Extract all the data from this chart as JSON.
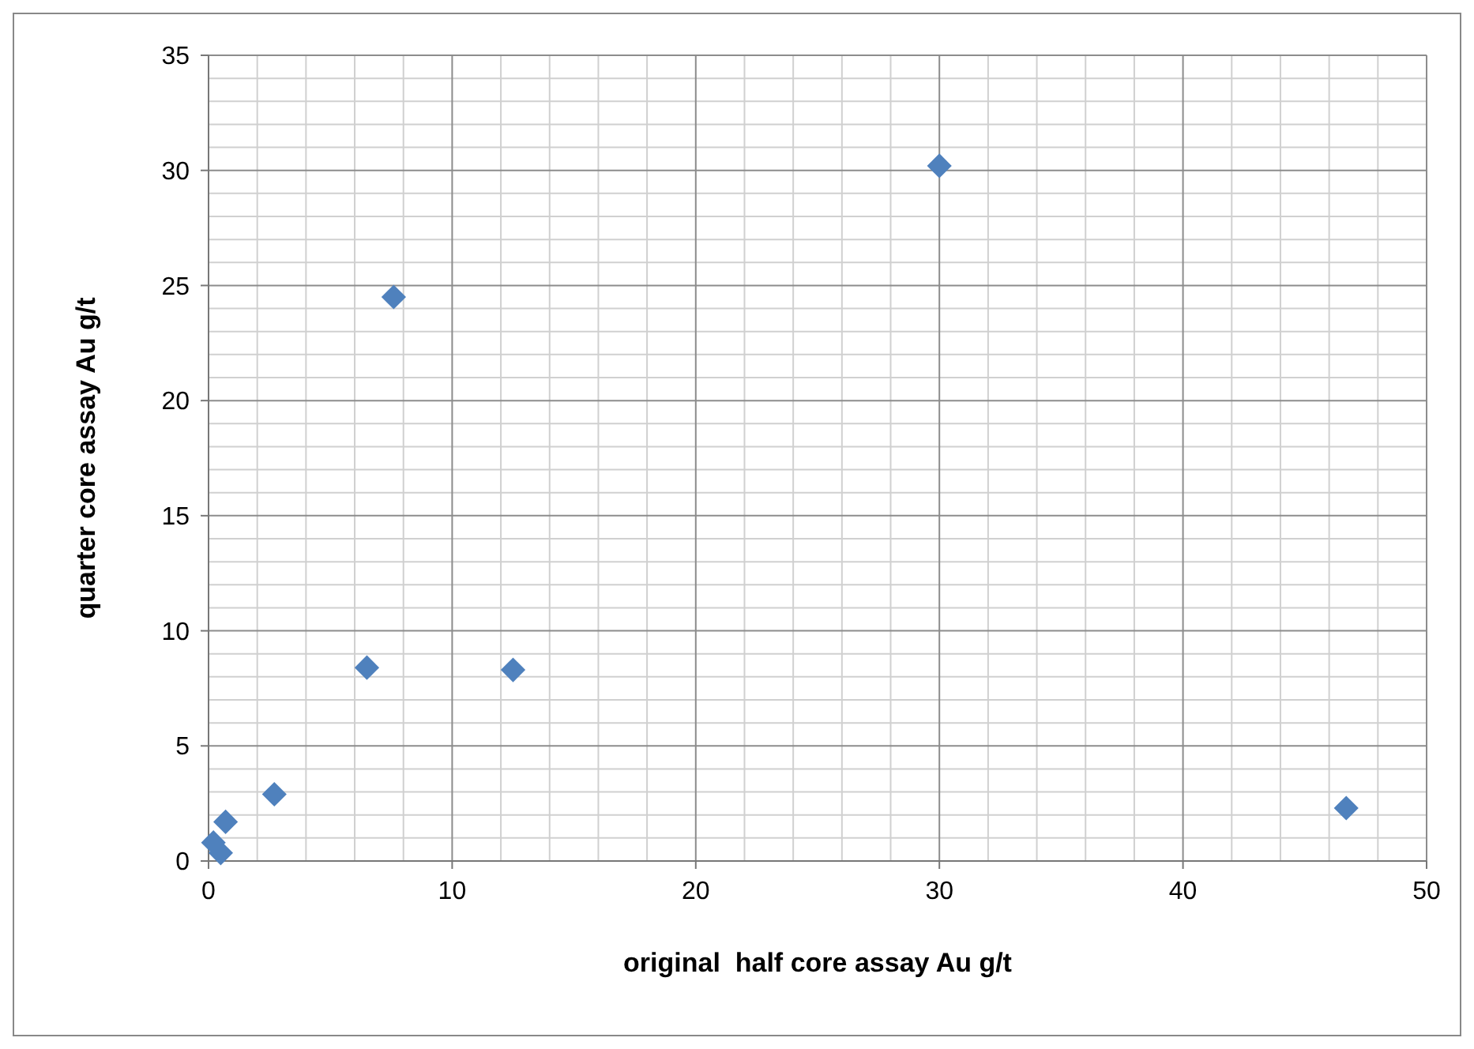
{
  "chart_data": {
    "type": "scatter",
    "xlabel": "original  half core assay Au g/t",
    "ylabel": "quarter core assay Au g/t",
    "x": [
      30.0,
      7.6,
      6.5,
      12.5,
      2.7,
      46.7,
      0.7,
      0.2,
      0.5
    ],
    "values": [
      30.2,
      24.5,
      8.4,
      8.3,
      2.9,
      2.3,
      1.7,
      0.8,
      0.35
    ],
    "color": "#4f81bd",
    "marker": "diamond",
    "xlim": [
      0,
      50
    ],
    "xticks": [
      0,
      10,
      20,
      30,
      40,
      50
    ],
    "ylim": [
      0,
      35
    ],
    "yticks": [
      0,
      5,
      10,
      15,
      20,
      25,
      30,
      35
    ],
    "grid": true
  }
}
